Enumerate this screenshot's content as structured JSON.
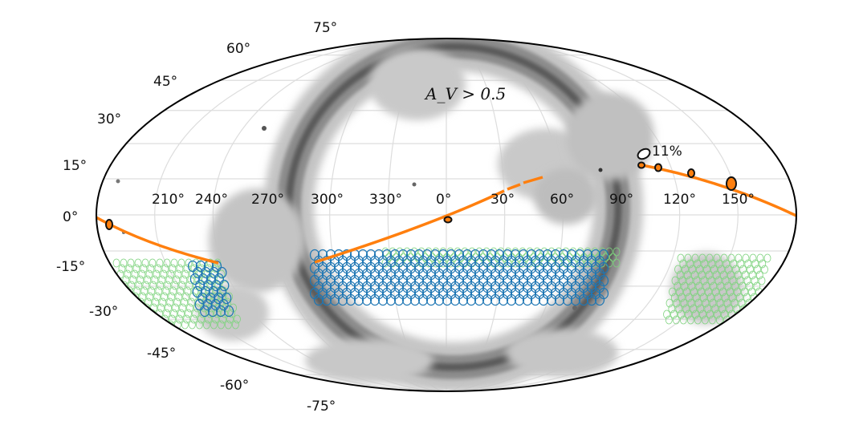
{
  "chart_data": {
    "type": "map",
    "projection": "Mollweide (all-sky)",
    "lon_tick_labels": [
      "210°",
      "240°",
      "270°",
      "300°",
      "330°",
      "0°",
      "30°",
      "60°",
      "90°",
      "120°",
      "150°"
    ],
    "lat_tick_labels": [
      "75°",
      "60°",
      "45°",
      "30°",
      "15°",
      "0°",
      "-15°",
      "-30°",
      "-45°",
      "-60°",
      "-75°"
    ],
    "annotations": {
      "dust_label": "A_V > 0.5",
      "percent_label": "11%"
    },
    "colors": {
      "dust_dark": "#555555",
      "dust_light": "#bdbdbd",
      "survey_fields": "#1f77b4",
      "extended_fields": "#7fd37f",
      "track": "#ff7f0e",
      "grid": "#dddddd"
    }
  }
}
